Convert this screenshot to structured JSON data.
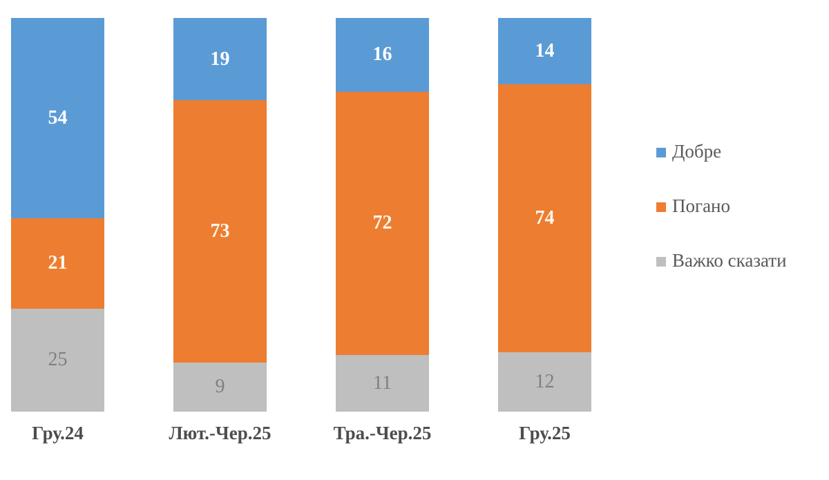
{
  "chart_data": {
    "type": "bar",
    "stacked": true,
    "title": "",
    "xlabel": "",
    "ylabel": "",
    "grid": false,
    "legend_position": "right",
    "background": "#FFFFFF",
    "categories": [
      "Гру.24",
      "Лют.-Чер.25",
      "Тра.-Чер.25",
      "Гру.25"
    ],
    "series": [
      {
        "name": "Добре",
        "color": "#5B9BD5",
        "values": [
          54,
          19,
          16,
          14
        ]
      },
      {
        "name": "Погано",
        "color": "#ED7D31",
        "values": [
          21,
          73,
          72,
          74
        ]
      },
      {
        "name": "Важко сказати",
        "color": "#BFBFBF",
        "values": [
          25,
          9,
          11,
          12
        ]
      }
    ],
    "value_label_colors": {
      "on_blue": "#FFFFFF",
      "on_orange": "#FDF8EE",
      "on_gray": "#7F7F7F"
    },
    "category_label_color": "#4D4D4D",
    "legend_text_color": "#595959"
  }
}
